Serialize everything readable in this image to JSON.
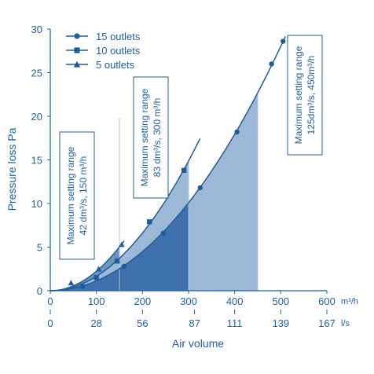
{
  "chart_data": {
    "type": "line",
    "ylabel": "Pressure loss Pa",
    "xlabel": "Air volume",
    "x_unit_primary": "m³/h",
    "x_unit_secondary": "l/s",
    "ylim": [
      0,
      30
    ],
    "xlim": [
      0,
      600
    ],
    "y_ticks": [
      "0",
      "5",
      "10",
      "15",
      "20",
      "25",
      "30"
    ],
    "x_ticks_primary": [
      "0",
      "100",
      "200",
      "300",
      "400",
      "500",
      "600"
    ],
    "x_ticks_secondary": [
      "0",
      "28",
      "56",
      "87",
      "111",
      "139",
      "167"
    ],
    "x_ticks_secondary_at": [
      0,
      100,
      200,
      313,
      400,
      500,
      600
    ],
    "legend_position": "top-left",
    "series": [
      {
        "name": "15 outlets",
        "marker": "circle",
        "x": [
          70,
          160,
          245,
          325,
          405,
          480,
          505
        ],
        "y": [
          0.5,
          2.8,
          6.6,
          11.8,
          18.2,
          26.0,
          28.6
        ],
        "setting_limit_x": 450
      },
      {
        "name": "10 outlets",
        "marker": "square",
        "x": [
          100,
          145,
          215,
          290
        ],
        "y": [
          1.5,
          3.4,
          7.9,
          13.8
        ],
        "setting_limit_x": 300
      },
      {
        "name": "5 outlets",
        "marker": "triangle",
        "x": [
          45,
          105,
          155
        ],
        "y": [
          0.9,
          2.5,
          5.3
        ],
        "setting_limit_x": 150
      }
    ],
    "annotations": [
      {
        "label": "Maximum setting range 42 dm³/s, 150 m³/h",
        "lines": [
          "Maximum setting range",
          "42 dm³/s, 150 m³/h"
        ]
      },
      {
        "label": "Maximum setting range 83 dm³/s, 300 m³/h",
        "lines": [
          "Maximum setting range",
          "83 dm³/s, 300 m³/h"
        ]
      },
      {
        "label": "Maximum setting range 125dm³/s, 450m³/h",
        "lines": [
          "Maximum setting range",
          "125dm³/s, 450m³/h"
        ]
      }
    ],
    "colors": {
      "text": "#1f5fa3",
      "curve": "#1e5c9c",
      "fill_light": "#9db7d6",
      "fill_mid": "#6d96c4",
      "fill_dark": "#3f72ad",
      "grid": "#b0c4dc"
    }
  }
}
